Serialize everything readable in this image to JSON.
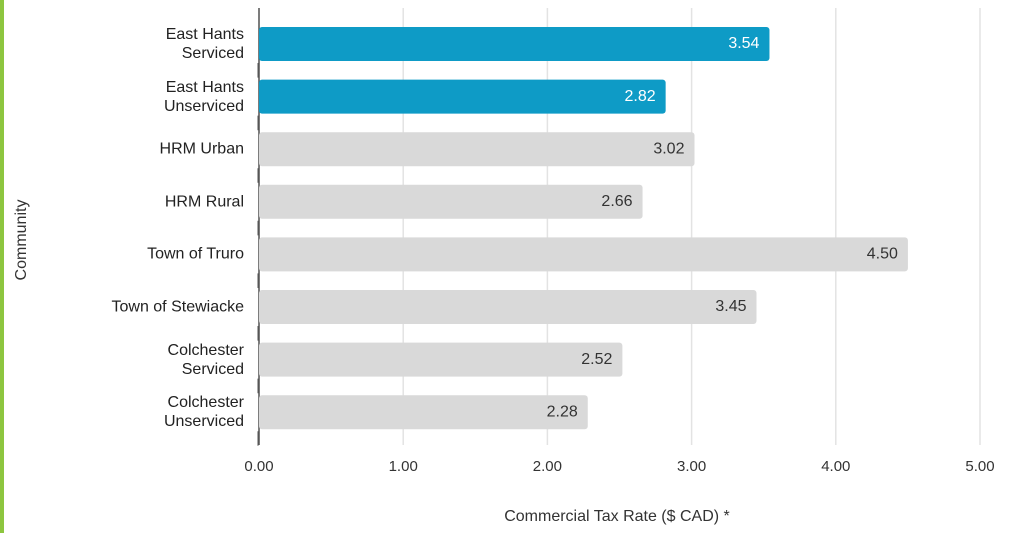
{
  "chart_data": {
    "type": "bar",
    "orientation": "horizontal",
    "categories": [
      "East Hants\nServiced",
      "East Hants\nUnserviced",
      "HRM  Urban",
      "HRM Rural",
      "Town  of Truro",
      "Town of Stewiacke",
      "Colchester\nServiced",
      "Colchester\nUnserviced"
    ],
    "values": [
      3.54,
      2.82,
      3.02,
      2.66,
      4.5,
      3.45,
      2.52,
      2.28
    ],
    "value_labels": [
      "3.54",
      "2.82",
      "3.02",
      "2.66",
      "4.50",
      "3.45",
      "2.52",
      "2.28"
    ],
    "colors": [
      "#0e9bc6",
      "#0e9bc6",
      "#d9d9d9",
      "#d9d9d9",
      "#d9d9d9",
      "#d9d9d9",
      "#d9d9d9",
      "#d9d9d9"
    ],
    "xlim": [
      0,
      5
    ],
    "xticks": [
      {
        "value": 0,
        "label": "0.00"
      },
      {
        "value": 1,
        "label": "1.00"
      },
      {
        "value": 2,
        "label": "2.00"
      },
      {
        "value": 3,
        "label": "3.00"
      },
      {
        "value": 4,
        "label": "4.00"
      },
      {
        "value": 5,
        "label": "5.00"
      }
    ],
    "xlabel": "Commercial Tax Rate ($ CAD) *",
    "ylabel": "Community",
    "grid": true
  }
}
